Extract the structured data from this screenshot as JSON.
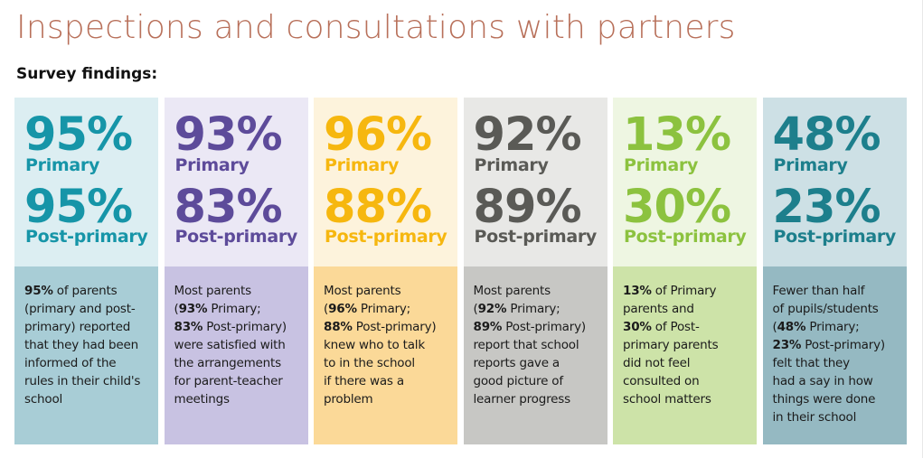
{
  "header": {
    "title": "Inspections and consultations with partners",
    "subtitle": "Survey findings:"
  },
  "cards": [
    {
      "primary_pct": "95%",
      "primary_label": "Primary",
      "post_pct": "95%",
      "post_label": "Post-primary",
      "desc": [
        "<b>95%</b> of parents",
        "(primary and post-",
        "primary) reported",
        "that they had been",
        "informed of the",
        "rules in their child's",
        "school"
      ],
      "colors": {
        "accent": "#1695a8",
        "top": "#dceef2",
        "bottom": "#a8cdd6"
      }
    },
    {
      "primary_pct": "93%",
      "primary_label": "Primary",
      "post_pct": "83%",
      "post_label": "Post-primary",
      "desc": [
        "Most parents",
        "(<b>93%</b> Primary;",
        "<b>83%</b> Post-primary)",
        "were satisfied with",
        "the arrangements",
        "for parent-teacher",
        "meetings"
      ],
      "colors": {
        "accent": "#5d4b9a",
        "top": "#ebe8f5",
        "bottom": "#c8c2e2"
      }
    },
    {
      "primary_pct": "96%",
      "primary_label": "Primary",
      "post_pct": "88%",
      "post_label": "Post-primary",
      "desc": [
        "Most parents",
        "(<b>96%</b> Primary;",
        "<b>88%</b> Post-primary)",
        "knew who to talk",
        "to in the school",
        "if there was a",
        "problem"
      ],
      "colors": {
        "accent": "#f6b70f",
        "top": "#fdf3dc",
        "bottom": "#fbd998"
      }
    },
    {
      "primary_pct": "92%",
      "primary_label": "Primary",
      "post_pct": "89%",
      "post_label": "Post-primary",
      "desc": [
        "Most parents",
        "(<b>92%</b> Primary;",
        "<b>89%</b> Post-primary)",
        "report that school",
        "reports gave a",
        "good picture of",
        "learner progress"
      ],
      "colors": {
        "accent": "#5a5a56",
        "top": "#e8e8e6",
        "bottom": "#c7c7c4"
      }
    },
    {
      "primary_pct": "13%",
      "primary_label": "Primary",
      "post_pct": "30%",
      "post_label": "Post-primary",
      "desc": [
        "<b>13%</b> of Primary",
        "parents and",
        "<b>30%</b> of Post-",
        "primary parents",
        "did not feel",
        "consulted on",
        "school matters"
      ],
      "colors": {
        "accent": "#8cc23f",
        "top": "#eef6e2",
        "bottom": "#cde3a8"
      }
    },
    {
      "primary_pct": "48%",
      "primary_label": "Primary",
      "post_pct": "23%",
      "post_label": "Post-primary",
      "desc": [
        "Fewer than half",
        "of pupils/students",
        "(<b>48%</b> Primary;",
        "<b>23%</b> Post-primary)",
        "felt that they",
        "had a say in how",
        "things were done",
        "in their school"
      ],
      "colors": {
        "accent": "#1d7f8c",
        "top": "#cde0e5",
        "bottom": "#95b9c2"
      }
    }
  ]
}
